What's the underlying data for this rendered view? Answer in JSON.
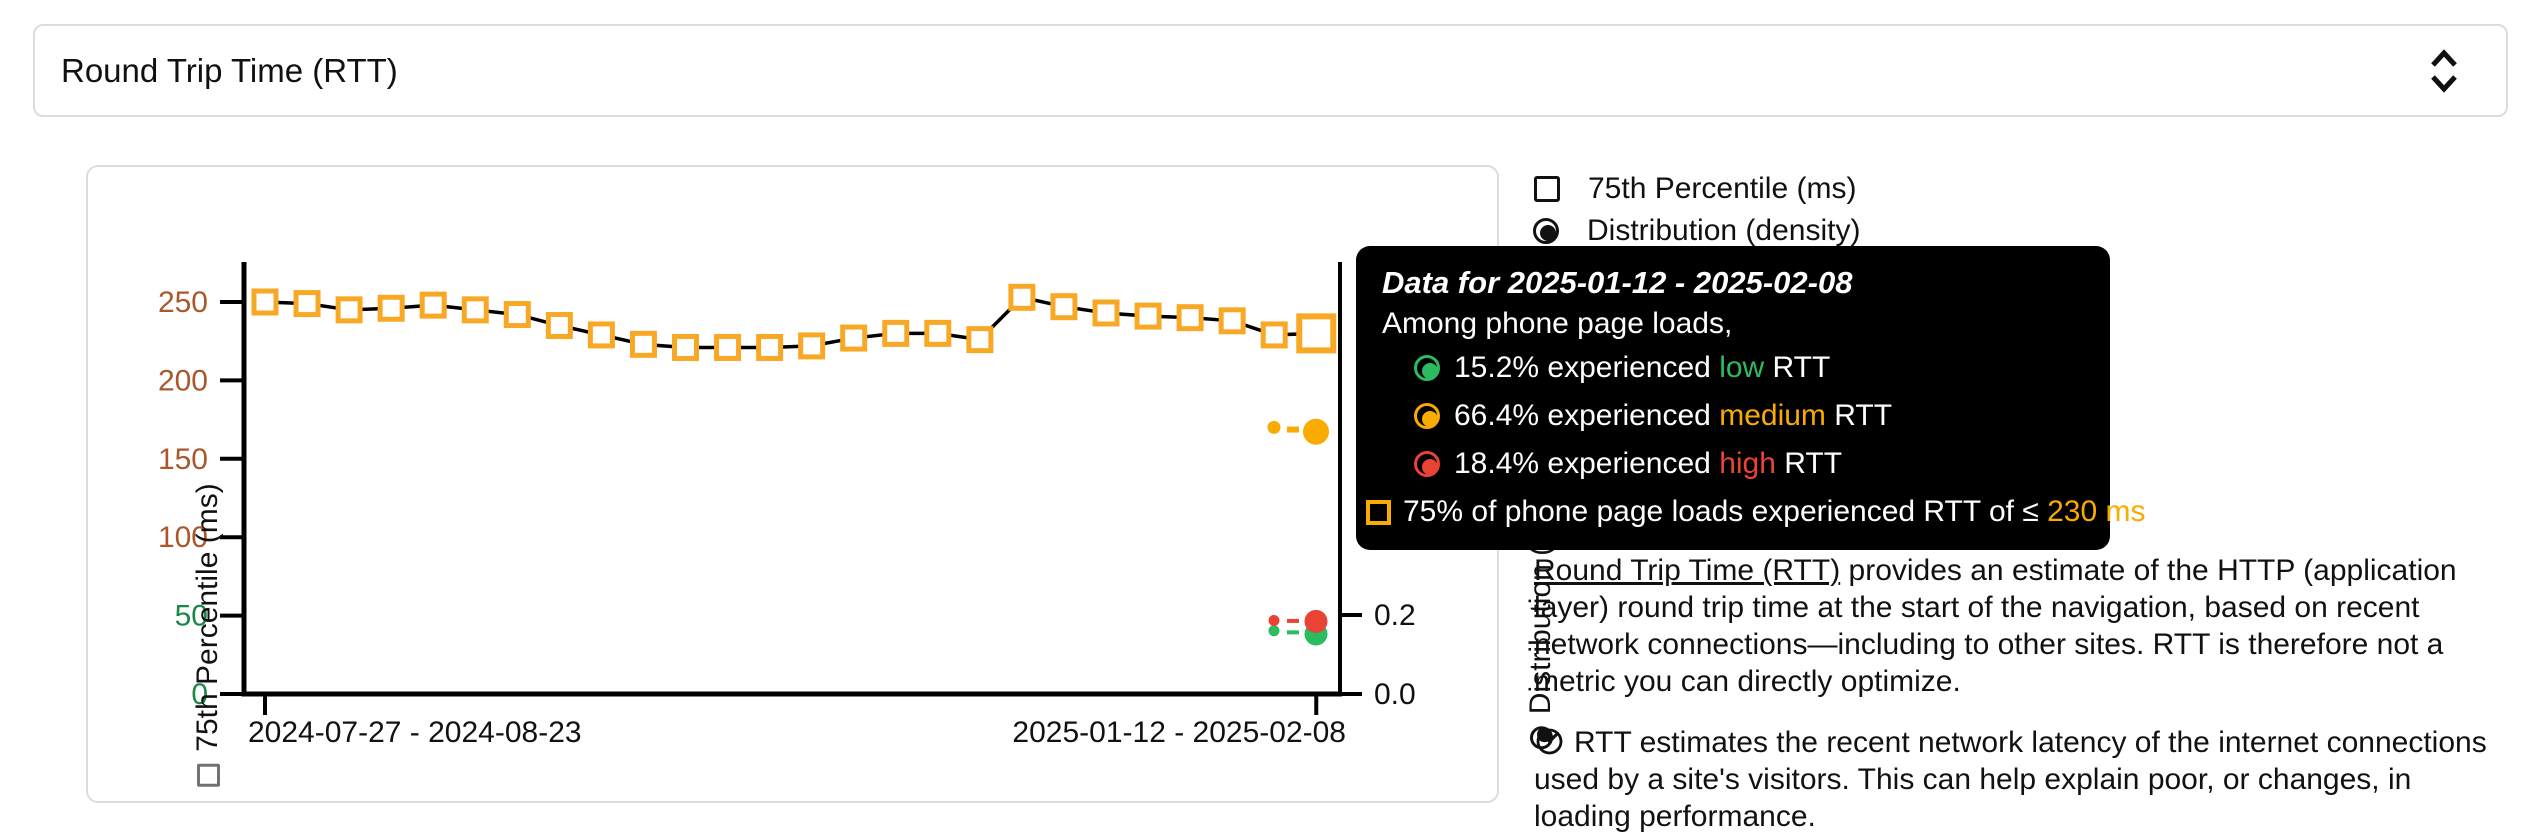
{
  "metric_selector": {
    "value": "Round Trip Time (RTT)"
  },
  "legend": {
    "percentile_label": "75th Percentile (ms)",
    "distribution_label": "Distribution (density)"
  },
  "tooltip": {
    "title": "Data for 2025-01-12 - 2025-02-08",
    "subtitle": "Among phone page loads,",
    "breakdown": [
      {
        "pct": "15.2%",
        "mid": " experienced ",
        "level": "low",
        "post": " RTT"
      },
      {
        "pct": "66.4%",
        "mid": " experienced ",
        "level": "medium",
        "post": " RTT"
      },
      {
        "pct": "18.4%",
        "mid": " experienced ",
        "level": "high",
        "post": " RTT"
      }
    ],
    "percentile_line": {
      "pre": "75% of phone page loads experienced RTT of ≤ ",
      "value": "230 ms"
    }
  },
  "chart_data": {
    "type": "line",
    "title": "Round Trip Time (RTT)",
    "ylabel_left": "75th Percentile (ms)",
    "ylabel_right": "Distribution (density)",
    "x_tick_labels": [
      "2024-07-27 - 2024-08-23",
      "2025-01-12 - 2025-02-08"
    ],
    "y_left_ticks": [
      0,
      50,
      100,
      150,
      200,
      250
    ],
    "y_left_range": [
      0,
      275
    ],
    "y_right_ticks": [
      0.0,
      0.2
    ],
    "y_right_range": [
      0.0,
      1.0
    ],
    "series": [
      {
        "name": "75th Percentile (ms)",
        "values": [
          250,
          249,
          245,
          246,
          248,
          245,
          242,
          235,
          229,
          223,
          221,
          221,
          221,
          222,
          227,
          230,
          230,
          226,
          253,
          247,
          243,
          241,
          240,
          238,
          229,
          230
        ]
      }
    ],
    "latest_distribution": {
      "low": 0.152,
      "medium": 0.664,
      "high": 0.184
    },
    "previous_distribution": {
      "low": 0.16,
      "medium": 0.675,
      "high": 0.186
    },
    "selected_point": {
      "x_label": "2025-01-12 - 2025-02-08",
      "value_ms": 230
    },
    "colors": {
      "marker": "#F9A825",
      "line": "#000000",
      "low": "#2BBB61",
      "medium": "#F9AB00",
      "high": "#EA4335",
      "tick_mid": "#A9572B",
      "tick_good": "#1D8649"
    }
  },
  "description": {
    "p1_link": "Round Trip Time (RTT)",
    "p1_rest": " provides an estimate of the HTTP (application layer) round trip time at the start of the navigation, based on recent network connections—including to other sites. RTT is therefore not a metric you can directly optimize.",
    "p2": "RTT estimates the recent network latency of the internet connections used by a site's visitors. This can help explain poor, or changes, in loading performance."
  }
}
